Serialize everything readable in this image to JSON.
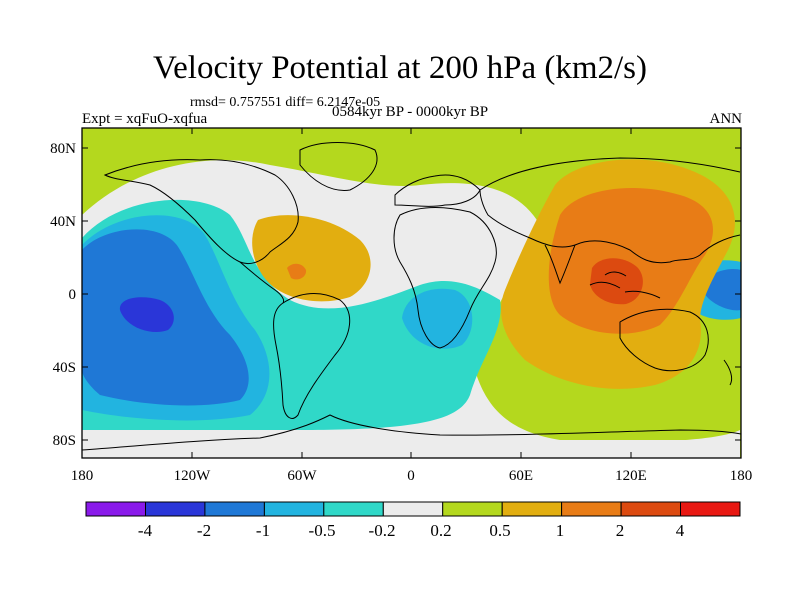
{
  "title": "Velocity Potential at 200 hPa (km2/s)",
  "stats": "rmsd= 0.757551 diff= 6.2147e-05",
  "left_label": "Expt = xqFuO-xqfua",
  "center_label": "0584kyr BP - 0000kyr BP",
  "right_label": "ANN",
  "y_axis_labels": [
    "80N",
    "40N",
    "0",
    "40S",
    "80S"
  ],
  "x_axis_labels": [
    "180",
    "120W",
    "60W",
    "0",
    "60E",
    "120E",
    "180"
  ],
  "colorbar": {
    "labels": [
      "-4",
      "-2",
      "-1",
      "-0.5",
      "-0.2",
      "0.2",
      "0.5",
      "1",
      "2",
      "4"
    ],
    "colors": [
      "#8a1aea",
      "#2a36d8",
      "#1f78d6",
      "#22b4e0",
      "#30d8c8",
      "#ececec",
      "#b4d81e",
      "#e2ae10",
      "#e87c16",
      "#dc4a10",
      "#e81812"
    ]
  },
  "chart_data": {
    "type": "contour_map",
    "variable": "velocity potential difference at 200 hPa",
    "units": "km2/s",
    "x_range": [
      -180,
      180
    ],
    "y_range": [
      -90,
      90
    ],
    "levels": [
      -4,
      -2,
      -1,
      -0.5,
      -0.2,
      0.2,
      0.5,
      1,
      2,
      4
    ],
    "features": [
      {
        "region": "central-east Pacific",
        "lon": -145,
        "lat": -10,
        "level": "-4 to -2"
      },
      {
        "region": "Maritime Continent",
        "lon": 115,
        "lat": 0,
        "level": "2 to 4"
      },
      {
        "region": "Caribbean / Atlantic",
        "lon": -65,
        "lat": 15,
        "level": "0.5 to 1"
      },
      {
        "region": "southeast Atlantic",
        "lon": 5,
        "lat": -15,
        "level": "-1 to -0.5"
      },
      {
        "region": "western tropical Pacific east",
        "lon": 175,
        "lat": 8,
        "level": "-1 to -0.5"
      }
    ]
  }
}
